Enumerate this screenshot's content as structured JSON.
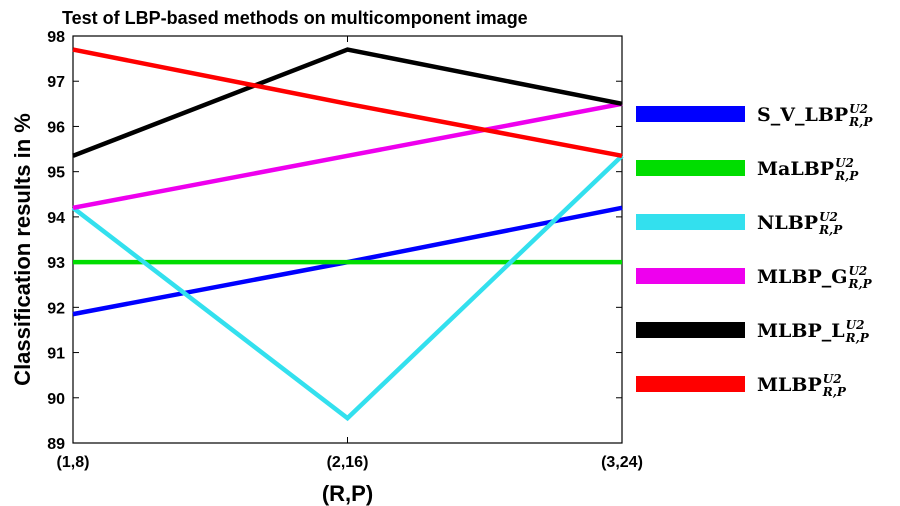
{
  "chart_data": {
    "type": "line",
    "title": "Test of LBP-based methods on multicomponent image",
    "xlabel": "(R,P)",
    "ylabel": "Classification results in %",
    "categories": [
      "(1,8)",
      "(2,16)",
      "(3,24)"
    ],
    "ylim": [
      89,
      98
    ],
    "yticks": [
      89,
      90,
      91,
      92,
      93,
      94,
      95,
      96,
      97,
      98
    ],
    "grid": false,
    "legend_position": "right",
    "series": [
      {
        "name": "S_V_LBP",
        "sup": "U2",
        "sub": "R,P",
        "color": "#0000ff",
        "values": [
          91.85,
          93.0,
          94.2
        ]
      },
      {
        "name": "MaLBP",
        "sup": "U2",
        "sub": "R,P",
        "color": "#00dd00",
        "values": [
          93.0,
          93.0,
          93.0
        ]
      },
      {
        "name": "NLBP",
        "sup": "U2",
        "sub": "R,P",
        "color": "#33e0ee",
        "values": [
          94.2,
          89.55,
          95.35
        ]
      },
      {
        "name": "MLBP_G",
        "sup": "U2",
        "sub": "R,P",
        "color": "#ee00ee",
        "values": [
          94.2,
          95.35,
          96.5
        ]
      },
      {
        "name": "MLBP_L",
        "sup": "U2",
        "sub": "R,P",
        "color": "#000000",
        "values": [
          95.35,
          97.7,
          96.5
        ]
      },
      {
        "name": "MLBP",
        "sup": "U2",
        "sub": "R,P",
        "color": "#ff0000",
        "values": [
          97.7,
          96.5,
          95.35
        ]
      }
    ]
  }
}
